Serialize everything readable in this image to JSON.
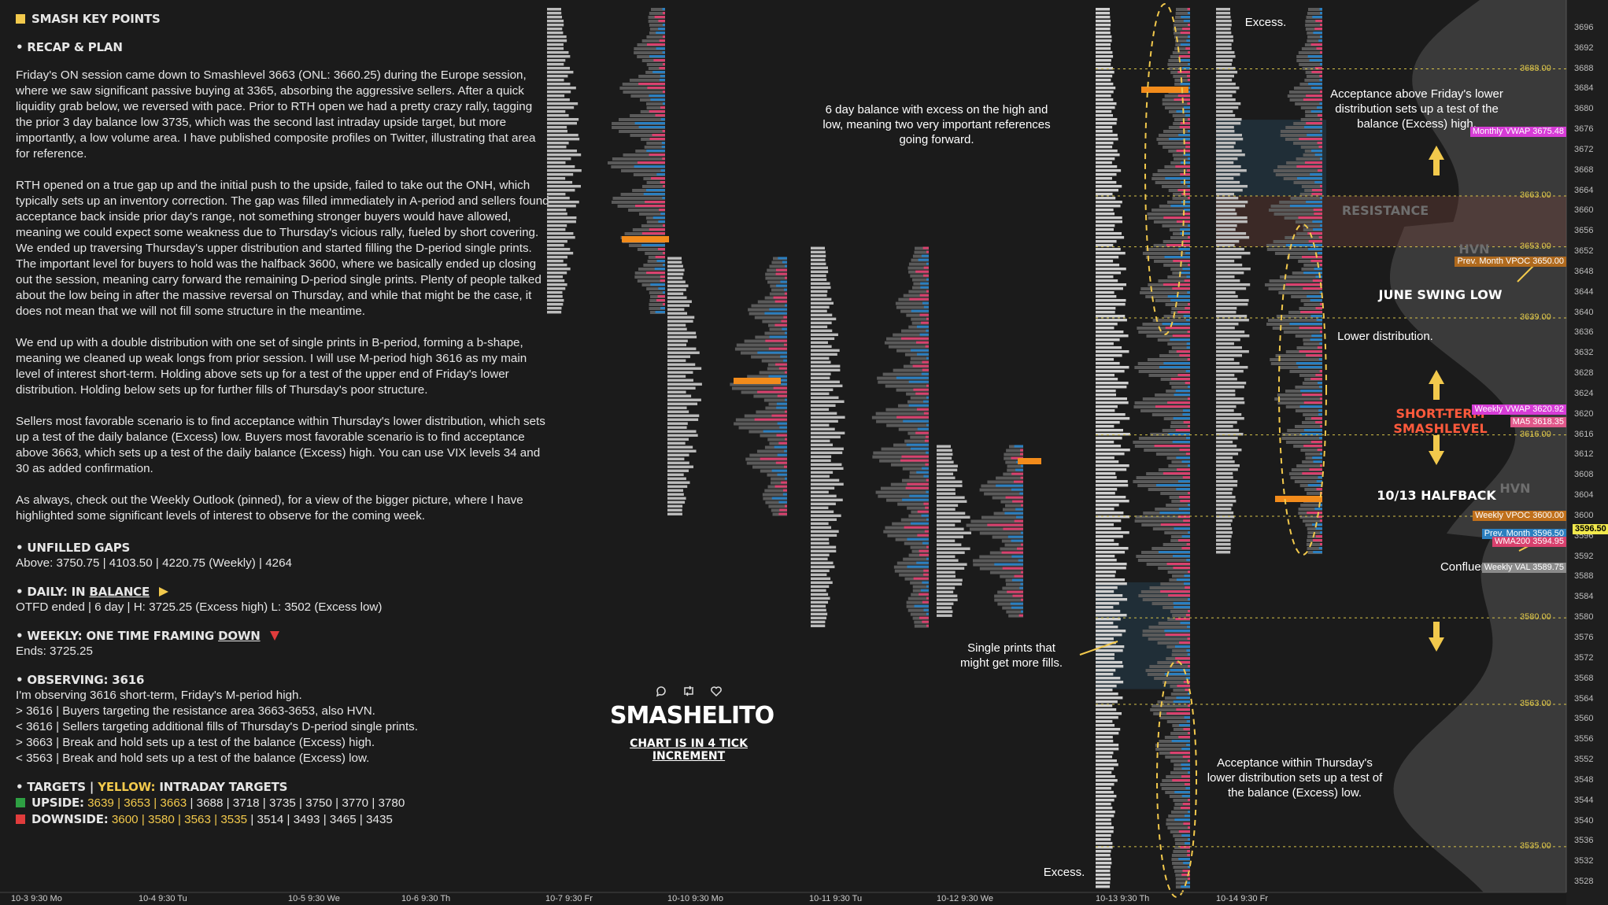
{
  "header": {
    "title": "SMASH KEY POINTS",
    "recap_title": "RECAP & PLAN"
  },
  "recap": [
    "Friday's ON session came down to Smashlevel 3663 (ONL: 3660.25) during the Europe session, where we saw significant passive buying at 3365, absorbing the aggressive sellers. After a quick liquidity grab below, we reversed with pace. Prior to RTH open we had a pretty crazy rally, tagging the prior 3 day balance low 3735, which was the second last intraday upside target, but more importantly, a low volume area. I have published composite profiles on Twitter, illustrating that area for reference.",
    "RTH opened on a true gap up and the initial push to the upside, failed to take out the ONH, which typically sets up an inventory correction. The gap was filled immediately in A-period and sellers found acceptance back inside prior day's range, not something stronger buyers would have allowed, meaning we could expect some weakness due to Thursday's vicious rally, fueled by short covering. We ended up traversing Thursday's upper distribution and started filling the D-period single prints. The important level for buyers to hold was the halfback 3600, where we basically ended up closing out the session, meaning carry forward the remaining D-period single prints. Plenty of people talked about the low being in after the massive reversal on Thursday, and while that might be the case, it does not mean that we will not fill some structure in the meantime.",
    "We end up with a double distribution with one set of single prints in B-period, forming a b-shape, meaning we cleaned up weak longs from prior session. I will use M-period high 3616 as my main level of interest short-term. Holding above sets up for a test of the upper end of Friday's lower distribution. Holding below sets up for further fills of Thursday's poor structure.",
    "Sellers most favorable scenario is to find acceptance within Thursday's lower distribution, which sets up a test of the daily balance (Excess) low. Buyers most favorable scenario is to find acceptance above 3663, which sets up a test of the daily balance (Excess) high. You can use VIX levels 34 and 30 as added confirmation.",
    "As always, check out the Weekly Outlook (pinned), for a view of the bigger picture, where I have highlighted some significant levels of interest to observe for the coming week."
  ],
  "gaps": {
    "title": "UNFILLED GAPS",
    "text": "Above: 3750.75 | 4103.50 | 4220.75 (Weekly) | 4264"
  },
  "daily": {
    "title_prefix": "DAILY: IN ",
    "title_word": "BALANCE",
    "text": "OTFD ended | 6 day | H: 3725.25 (Excess high) L: 3502 (Excess low)"
  },
  "weekly": {
    "title_prefix": "WEEKLY: ONE TIME FRAMING ",
    "title_word": "DOWN",
    "text": "Ends: 3725.25"
  },
  "observing": {
    "title": "OBSERVING: 3616",
    "lines": [
      "I'm observing 3616 short-term, Friday's M-period high.",
      "> 3616 | Buyers targeting the resistance area 3663-3653, also HVN.",
      "< 3616 | Sellers targeting additional fills of Thursday's D-period single prints.",
      "> 3663 | Break and hold sets up a test of the balance (Excess) high.",
      "< 3563 | Break and hold sets up a test of the balance (Excess) low."
    ]
  },
  "targets": {
    "title": "TARGETS",
    "title_sep": "|",
    "title_yellow": "YELLOW:",
    "title_rest": "INTRADAY TARGETS",
    "upside_label": "UPSIDE:",
    "upside_yellow": "3639 | 3653 | 3663",
    "upside_rest": "| 3688 | 3718 | 3735 | 3750 | 3770 | 3780",
    "downside_label": "DOWNSIDE:",
    "downside_yellow": "3600 | 3580 | 3563 | 3535",
    "downside_rest": "| 3514 | 3493 | 3465 | 3435"
  },
  "colors": {
    "green": "#2ea043",
    "red": "#e03c3c",
    "yellow": "#f2c94c",
    "orange": "#f28b1b",
    "blue": "#2b7fc0",
    "pink": "#d8416e"
  },
  "brand": {
    "name": "SMASHELITO",
    "subtitle": "CHART IS IN 4 TICK INCREMENT",
    "icons": [
      "reply-icon",
      "retweet-icon",
      "heart-icon",
      "twitter-bird-icon"
    ]
  },
  "annotations": {
    "balance": "6 day balance with excess on the high and low, meaning two very important references going forward.",
    "excess_top": "Excess.",
    "excess_bottom": "Excess.",
    "acceptance_above": "Acceptance above Friday's lower distribution sets up a test of the balance (Excess) high.",
    "resistance": "RESISTANCE",
    "hvn_top": "HVN",
    "hvn_bottom": "HVN",
    "june_swing_low": "JUNE SWING LOW",
    "lower_distribution": "Lower distribution.",
    "short_term_smashlevel": "SHORT-TERM SMASHLEVEL",
    "halfback": "10/13 HALFBACK",
    "confluence": "Confluence.",
    "single_prints": "Single prints that might get more fills.",
    "acceptance_within": "Acceptance within Thursday's lower distribution sets up a test of the balance (Excess) low."
  },
  "chart_data": {
    "type": "market-profile",
    "title": "",
    "increment": "4 tick",
    "ylim": [
      3526,
      3700
    ],
    "y_ticks": [
      3696,
      3692,
      3688,
      3684,
      3680,
      3676,
      3672,
      3668,
      3664,
      3660,
      3656,
      3652,
      3648,
      3644,
      3640,
      3636,
      3632,
      3628,
      3624,
      3620,
      3616,
      3612,
      3608,
      3604,
      3600,
      3596,
      3592,
      3588,
      3584,
      3580,
      3576,
      3572,
      3568,
      3564,
      3560,
      3556,
      3552,
      3548,
      3544,
      3540,
      3536,
      3532,
      3528
    ],
    "sessions": [
      "10-3  9:30 Mo",
      "10-4  9:30 Tu",
      "10-5  9:30 We",
      "10-6  9:30 Th",
      "10-7  9:30 Fr",
      "10-10  9:30 Mo",
      "10-11  9:30 Tu",
      "10-12  9:30 We",
      "10-13  9:30 Th",
      "10-14  9:30 Fr"
    ],
    "levels": [
      {
        "value": 3688.0,
        "label": "3688.00"
      },
      {
        "value": 3663.0,
        "label": "3663.00"
      },
      {
        "value": 3653.0,
        "label": "3653.00"
      },
      {
        "value": 3639.0,
        "label": "3639.00"
      },
      {
        "value": 3616.0,
        "label": "3616.00"
      },
      {
        "value": 3600.0,
        "label": "3600.00"
      },
      {
        "value": 3580.0,
        "label": "3580.00"
      },
      {
        "value": 3563.0,
        "label": "3563.00"
      },
      {
        "value": 3535.0,
        "label": "3535.00"
      }
    ],
    "tags": [
      {
        "name": "Monthly VWAP",
        "value": 3675.48,
        "price": "3675.48",
        "color": "#d63cd6"
      },
      {
        "name": "Prev. Month VPOC",
        "value": 3650.0,
        "price": "3650.00",
        "color": "#b06a1e"
      },
      {
        "name": "Weekly VWAP",
        "value": 3620.92,
        "price": "3620.92",
        "color": "#d63cd6"
      },
      {
        "name": "MA5",
        "value": 3618.35,
        "price": "3618.35",
        "color": "#e0588a"
      },
      {
        "name": "Weekly VPOC",
        "value": 3600.0,
        "price": "3600.00",
        "color": "#c0701b"
      },
      {
        "name": "Prev. Month",
        "value": 3596.5,
        "price": "3596.50",
        "color": "#2b7fc0"
      },
      {
        "name": "WMA200",
        "value": 3594.95,
        "price": "3594.95",
        "color": "#d8416e"
      },
      {
        "name": "Weekly VAL",
        "value": 3589.75,
        "price": "3589.75",
        "color": "#8a8a8a"
      }
    ],
    "current_price": "3596.50",
    "zones": [
      {
        "name": "resistance",
        "low": 3653,
        "high": 3663
      },
      {
        "name": "single-prints-upper",
        "low": 3663,
        "high": 3678
      },
      {
        "name": "single-prints-lower",
        "low": 3566,
        "high": 3587
      }
    ]
  }
}
